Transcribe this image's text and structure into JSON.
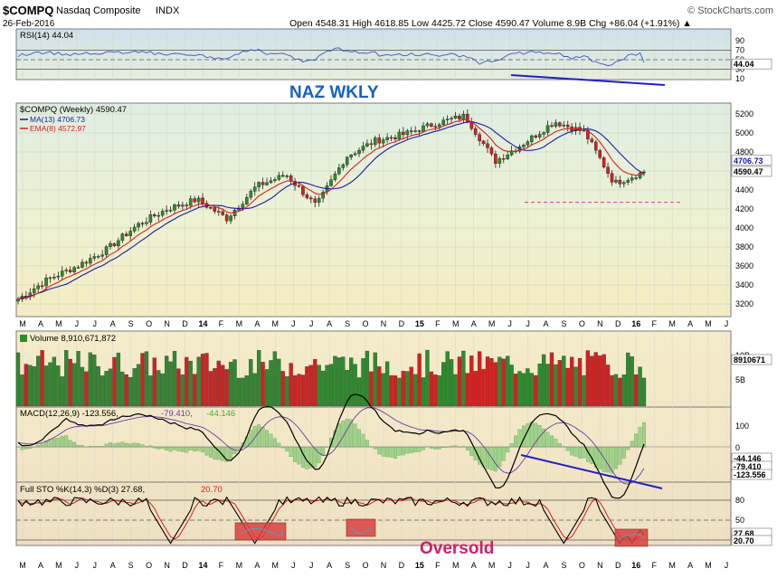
{
  "header": {
    "symbol": "$COMPQ",
    "name": "Nasdaq Composite",
    "exchange": "INDX",
    "date": "26-Feb-2016",
    "brand": "© StockCharts.com",
    "ohlc": "Open 4548.31  High 4618.85  Low 4425.72  Close 4590.47  Volume 8.9B  Chg +86.04 (+1.91%) ▲"
  },
  "annotations": {
    "naz": "NAZ WKLY",
    "oversold": "Oversold"
  },
  "colors": {
    "up": "#2e8b2e",
    "down": "#d42020",
    "ma13": "#1a1aa8",
    "ema8": "#d42020",
    "trend": "#2020c8",
    "oversold": "#cc1f66",
    "box": "#d94040"
  },
  "panels": {
    "rsi": {
      "label": "RSI(14) 44.04",
      "ticks": [
        "90",
        "70",
        "50",
        "30",
        "10"
      ],
      "current": "44.04"
    },
    "price": {
      "label": "$COMPQ (Weekly) 4590.47",
      "ma_label": "MA(13) 4706.73",
      "ema_label": "EMA(8) 4572.97",
      "ticks": [
        "5200",
        "5000",
        "4800",
        "4600",
        "4400",
        "4200",
        "4000",
        "3800",
        "3600",
        "3400",
        "3200"
      ],
      "ma_value": "4706.73",
      "close_value": "4590.47"
    },
    "volume": {
      "label": "Volume 8,910,671,872",
      "ticks": [
        "10B",
        "5B"
      ],
      "current": "8910671"
    },
    "macd": {
      "label_main": "MACD(12,26,9) -123.556,",
      "label_signal": "-79.410,",
      "label_hist": "-44.146",
      "ticks": [
        "100",
        "0"
      ],
      "values": [
        "-44.146",
        "-79.410",
        "-123.556"
      ]
    },
    "sto": {
      "label_main": "Full STO %K(14,3) %D(3) 27.68,",
      "label_d": "20.70",
      "ticks": [
        "80",
        "50"
      ],
      "values": [
        "27.68",
        "20.70"
      ]
    }
  },
  "x_axis_months": [
    "M",
    "A",
    "M",
    "J",
    "J",
    "A",
    "S",
    "O",
    "N",
    "D",
    "14",
    "F",
    "M",
    "A",
    "M",
    "J",
    "J",
    "A",
    "S",
    "O",
    "N",
    "D",
    "15",
    "F",
    "M",
    "A",
    "M",
    "J",
    "J",
    "A",
    "S",
    "O",
    "N",
    "D",
    "16",
    "F",
    "M",
    "A",
    "M",
    "J"
  ],
  "chart_data": {
    "type": "candlestick",
    "title": "$COMPQ Nasdaq Composite INDX (Weekly)",
    "date_range": [
      "2013-03",
      "2016-02-26"
    ],
    "price_close_approx": [
      {
        "date": "2013-03",
        "close": 3250
      },
      {
        "date": "2013-05",
        "close": 3460
      },
      {
        "date": "2013-07",
        "close": 3600
      },
      {
        "date": "2013-09",
        "close": 3780
      },
      {
        "date": "2013-11",
        "close": 4030
      },
      {
        "date": "2014-01",
        "close": 4200
      },
      {
        "date": "2014-03",
        "close": 4300
      },
      {
        "date": "2014-05",
        "close": 4100
      },
      {
        "date": "2014-07",
        "close": 4440
      },
      {
        "date": "2014-09",
        "close": 4560
      },
      {
        "date": "2014-10",
        "close": 4230
      },
      {
        "date": "2014-12",
        "close": 4750
      },
      {
        "date": "2015-02",
        "close": 4920
      },
      {
        "date": "2015-04",
        "close": 4990
      },
      {
        "date": "2015-06",
        "close": 5100
      },
      {
        "date": "2015-07",
        "close": 5180
      },
      {
        "date": "2015-08",
        "close": 4700
      },
      {
        "date": "2015-10",
        "close": 4900
      },
      {
        "date": "2015-11",
        "close": 5120
      },
      {
        "date": "2015-12",
        "close": 5010
      },
      {
        "date": "2016-01",
        "close": 4470
      },
      {
        "date": "2016-02",
        "close": 4590
      }
    ],
    "support_level": 4270,
    "ylim": [
      3100,
      5350
    ]
  }
}
